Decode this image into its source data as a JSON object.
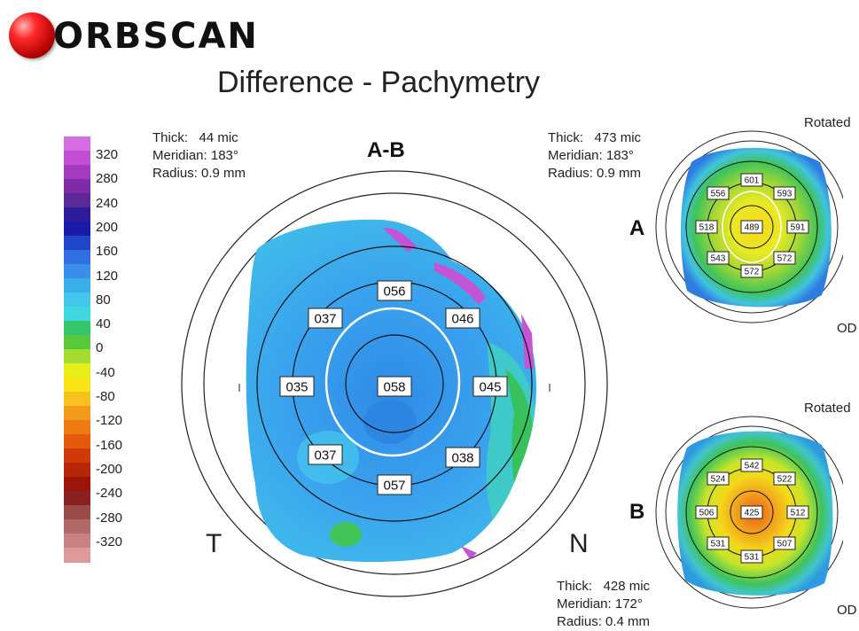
{
  "logo": {
    "text": "ORBSCAN"
  },
  "title": "Difference - Pachymetry",
  "legend": {
    "ticks": [
      "320",
      "280",
      "240",
      "200",
      "160",
      "120",
      "80",
      "40",
      "0",
      "-40",
      "-80",
      "-120",
      "-160",
      "-200",
      "-240",
      "-280",
      "-320"
    ],
    "colors": [
      "#d56ee0",
      "#c24fd3",
      "#a33ac0",
      "#7f2aa8",
      "#5c2a98",
      "#2a1c9b",
      "#1a1aa8",
      "#1f46c8",
      "#2f6fe0",
      "#3a8ee8",
      "#3aaee8",
      "#41c6ec",
      "#3fd7e0",
      "#33c66b",
      "#59c93c",
      "#a5dc32",
      "#e7ef1a",
      "#fbe414",
      "#f7c21d",
      "#f29a1a",
      "#ee7a12",
      "#e45a0d",
      "#d03a0a",
      "#b82608",
      "#9d1508",
      "#8a2020",
      "#9b4a4a",
      "#b16868",
      "#c88080",
      "#de9a9a"
    ]
  },
  "main_map": {
    "label_top": "A-B",
    "label_left": "T",
    "label_right": "N",
    "info": {
      "thick": "Thick:   44 mic",
      "meridian": "Meridian: 183°",
      "radius": "Radius: 0.9 mm"
    },
    "values": {
      "center": "058",
      "top": "056",
      "upper_left": "037",
      "upper_right": "046",
      "left": "035",
      "right": "045",
      "lower_left": "037",
      "lower_right": "038",
      "bottom": "057"
    }
  },
  "map_a": {
    "letter": "A",
    "rotated": "Rotated",
    "eye": "OD",
    "info": {
      "thick": "Thick:   473 mic",
      "meridian": "Meridian: 183°",
      "radius": "Radius: 0.9 mm"
    },
    "values": {
      "center": "489",
      "top": "601",
      "upper_left": "556",
      "upper_right": "593",
      "left": "518",
      "right": "591",
      "lower_left": "543",
      "lower_right": "572",
      "bottom": "572"
    }
  },
  "map_b": {
    "letter": "B",
    "rotated": "Rotated",
    "eye": "OD",
    "info": {
      "thick": "Thick:   428 mic",
      "meridian": "Meridian: 172°",
      "radius": "Radius: 0.4 mm"
    },
    "values": {
      "center": "425",
      "top": "542",
      "upper_left": "524",
      "upper_right": "522",
      "left": "506",
      "right": "512",
      "lower_left": "531",
      "lower_right": "507",
      "bottom": "531"
    }
  }
}
